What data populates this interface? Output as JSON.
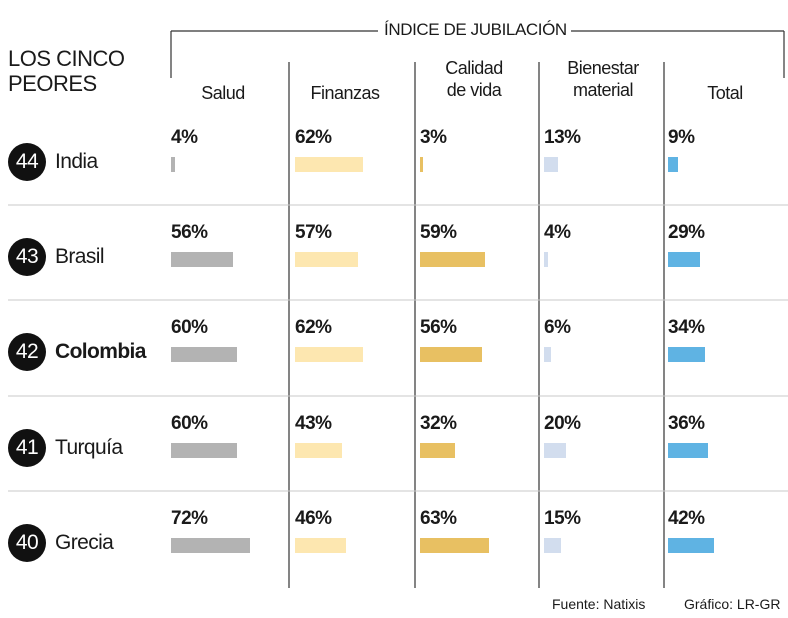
{
  "chart_data": {
    "type": "table",
    "title": "ÍNDICE DE JUBILACIÓN",
    "subtitle": [
      "LOS CINCO",
      "PEORES"
    ],
    "columns": [
      {
        "label_lines": [
          "Salud"
        ],
        "color": "#b3b3b3"
      },
      {
        "label_lines": [
          "Finanzas"
        ],
        "color": "#fde7b0"
      },
      {
        "label_lines": [
          "Calidad",
          "de vida"
        ],
        "color": "#e8c062"
      },
      {
        "label_lines": [
          "Bienestar",
          "material"
        ],
        "color": "#d2ddee"
      },
      {
        "label_lines": [
          "Total"
        ],
        "color": "#5fb3e3"
      }
    ],
    "value_scale_max": 100,
    "rows": [
      {
        "rank": "44",
        "country": "India",
        "highlight": false,
        "values": [
          4,
          62,
          3,
          13,
          9
        ],
        "labels": [
          "4%",
          "62%",
          "3%",
          "13%",
          "9%"
        ]
      },
      {
        "rank": "43",
        "country": "Brasil",
        "highlight": false,
        "values": [
          56,
          57,
          59,
          4,
          29
        ],
        "labels": [
          "56%",
          "57%",
          "59%",
          "4%",
          "29%"
        ]
      },
      {
        "rank": "42",
        "country": "Colombia",
        "highlight": true,
        "values": [
          60,
          62,
          56,
          6,
          34
        ],
        "labels": [
          "60%",
          "62%",
          "56%",
          "6%",
          "34%"
        ]
      },
      {
        "rank": "41",
        "country": "Turquía",
        "highlight": false,
        "values": [
          60,
          43,
          32,
          20,
          36
        ],
        "labels": [
          "60%",
          "43%",
          "32%",
          "20%",
          "36%"
        ]
      },
      {
        "rank": "40",
        "country": "Grecia",
        "highlight": false,
        "values": [
          72,
          46,
          63,
          15,
          42
        ],
        "labels": [
          "72%",
          "46%",
          "63%",
          "15%",
          "42%"
        ]
      }
    ],
    "grid_lines": "horizontal between rows, vertical between columns"
  },
  "footer": {
    "source": "Fuente: Natixis",
    "credit": "Gráfico: LR-GR"
  }
}
